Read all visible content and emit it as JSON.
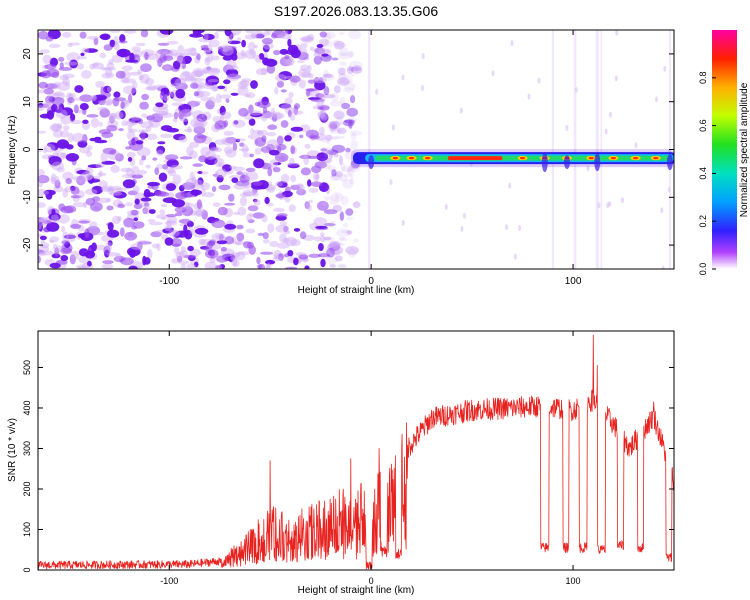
{
  "title": "S197.2026.083.13.35.G06",
  "colors": {
    "signal_line": "#e8231f",
    "noise_dot": "#7b1fe6",
    "axis": "#000000",
    "background": "#ffffff"
  },
  "chart_data": [
    {
      "type": "heatmap",
      "title": "S197.2026.083.13.35.G06",
      "xlabel": "Height of straight line (km)",
      "ylabel": "Frequency (Hz)",
      "xlim": [
        -165,
        150
      ],
      "ylim": [
        -25,
        25
      ],
      "xticks": [
        -100,
        0,
        100
      ],
      "yticks": [
        -20,
        -10,
        0,
        10,
        20
      ],
      "xtick_labels": [
        "-100",
        "0",
        "100"
      ],
      "ytick_labels": [
        "-20",
        "-10",
        "0",
        "10",
        "20"
      ],
      "colorbar": {
        "label": "Normalized spectral amplitude",
        "range": [
          0,
          1
        ],
        "ticks": [
          0.0,
          0.2,
          0.4,
          0.6,
          0.8
        ],
        "tick_labels": [
          "0.0",
          "0.2",
          "0.4",
          "0.6",
          "0.8"
        ]
      },
      "regions": [
        {
          "name": "noise",
          "x_range": [
            -165,
            -7
          ],
          "y_range": [
            -25,
            25
          ],
          "amplitude": "low-moderate, scattered"
        },
        {
          "name": "carrier",
          "x_range": [
            -10,
            150
          ],
          "frequency_hz": -1.8,
          "peak_amplitude": 1.0,
          "peak_x_range": [
            38,
            65
          ]
        }
      ]
    },
    {
      "type": "line",
      "xlabel": "Height of straight line (km)",
      "ylabel": "SNR (10 * v/v)",
      "xlim": [
        -165,
        150
      ],
      "ylim": [
        0,
        590
      ],
      "xticks": [
        -100,
        0,
        100
      ],
      "yticks": [
        0,
        100,
        200,
        300,
        400,
        500
      ],
      "xtick_labels": [
        "-100",
        "0",
        "100"
      ],
      "ytick_labels": [
        "0",
        "100",
        "200",
        "300",
        "400",
        "500"
      ],
      "series": [
        {
          "name": "SNR",
          "envelope": [
            {
              "x": -165,
              "y": 12
            },
            {
              "x": -90,
              "y": 14
            },
            {
              "x": -75,
              "y": 22
            },
            {
              "x": -62,
              "y": 70
            },
            {
              "x": -50,
              "y": 130
            },
            {
              "x": -40,
              "y": 110
            },
            {
              "x": -25,
              "y": 140
            },
            {
              "x": -10,
              "y": 175
            },
            {
              "x": 0,
              "y": 185
            },
            {
              "x": 10,
              "y": 210
            },
            {
              "x": 18,
              "y": 300
            },
            {
              "x": 30,
              "y": 375
            },
            {
              "x": 50,
              "y": 395
            },
            {
              "x": 70,
              "y": 400
            },
            {
              "x": 85,
              "y": 405
            },
            {
              "x": 100,
              "y": 395
            },
            {
              "x": 110,
              "y": 420
            },
            {
              "x": 120,
              "y": 360
            },
            {
              "x": 128,
              "y": 300
            },
            {
              "x": 140,
              "y": 380
            },
            {
              "x": 150,
              "y": 220
            }
          ],
          "dropouts": [
            {
              "x0": -2.5,
              "x1": 0.5,
              "y": 8
            },
            {
              "x0": 5,
              "x1": 8,
              "y": 45
            },
            {
              "x0": 12,
              "x1": 15,
              "y": 40
            },
            {
              "x0": 84,
              "x1": 88,
              "y": 55
            },
            {
              "x0": 95,
              "x1": 98,
              "y": 55
            },
            {
              "x0": 103,
              "x1": 107,
              "y": 55
            },
            {
              "x0": 112,
              "x1": 116,
              "y": 50
            },
            {
              "x0": 122,
              "x1": 125,
              "y": 60
            },
            {
              "x0": 132,
              "x1": 135,
              "y": 55
            },
            {
              "x0": 146,
              "x1": 149,
              "y": 30
            }
          ],
          "spikes": [
            {
              "x": 110,
              "y": 580
            },
            {
              "x": 112,
              "y": 505
            },
            {
              "x": -50,
              "y": 270
            },
            {
              "x": -10,
              "y": 275
            },
            {
              "x": 4,
              "y": 300
            },
            {
              "x": 140,
              "y": 415
            }
          ]
        }
      ]
    }
  ]
}
